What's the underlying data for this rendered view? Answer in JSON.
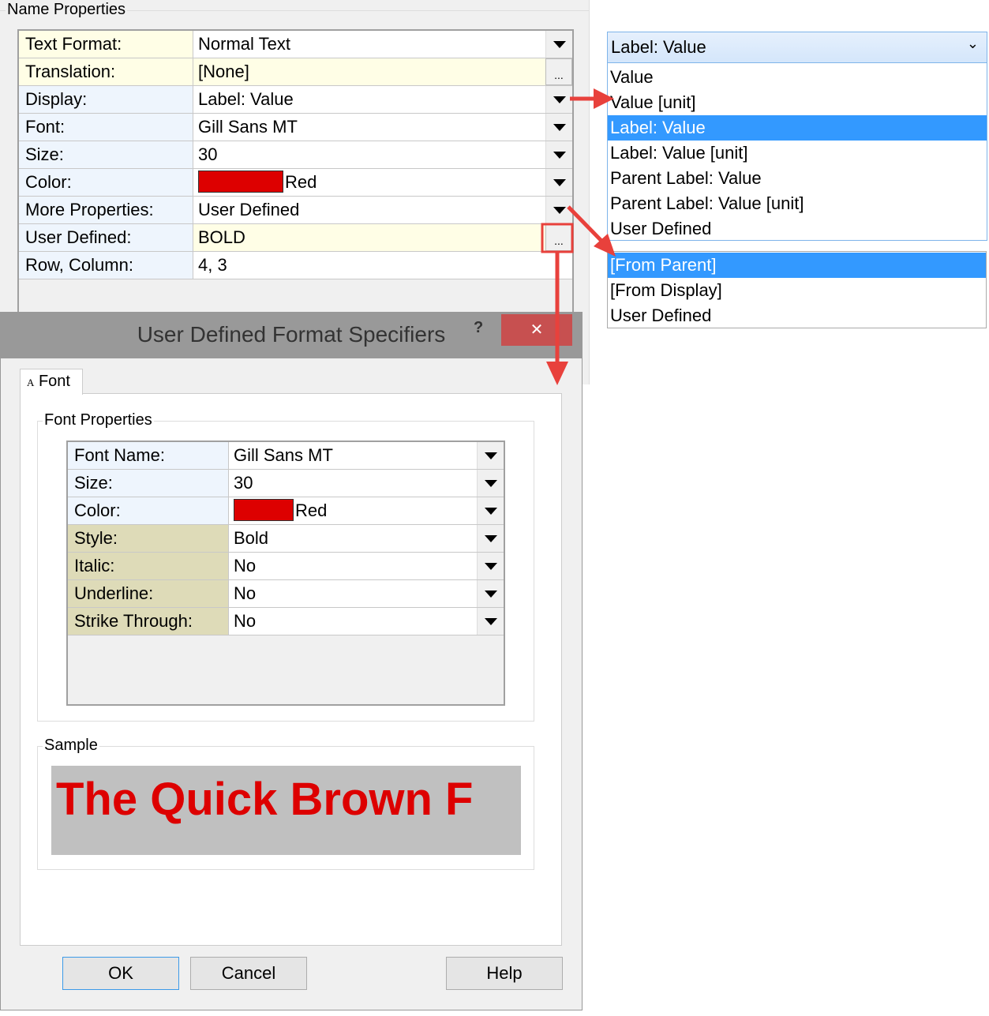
{
  "name_properties": {
    "title": "Name Properties",
    "rows": [
      {
        "label": "Text Format:",
        "value": "Normal Text",
        "control": "dropdown"
      },
      {
        "label": "Translation:",
        "value": "[None]",
        "control": "ellipsis"
      },
      {
        "label": "Display:",
        "value": "Label: Value",
        "control": "dropdown"
      },
      {
        "label": "Font:",
        "value": "Gill Sans MT",
        "control": "dropdown"
      },
      {
        "label": "Size:",
        "value": "30",
        "control": "dropdown"
      },
      {
        "label": "Color:",
        "value": "Red",
        "control": "dropdown",
        "swatch": "#dd0000"
      },
      {
        "label": "More Properties:",
        "value": "User Defined",
        "control": "dropdown"
      },
      {
        "label": "User Defined:",
        "value": "BOLD",
        "control": "ellipsis"
      },
      {
        "label": "Row, Column:",
        "value": "4, 3",
        "control": "none"
      }
    ],
    "ellipsis": "..."
  },
  "display_dropdown": {
    "selected": "Label: Value",
    "options": [
      "Value",
      "Value [unit]",
      "Label: Value",
      "Label: Value [unit]",
      "Parent Label: Value",
      "Parent Label: Value [unit]",
      "User Defined"
    ]
  },
  "more_properties_dropdown": {
    "options": [
      "[From Parent]",
      "[From Display]",
      "User Defined"
    ],
    "selected": "[From Parent]"
  },
  "dialog": {
    "title": "User Defined Format Specifiers",
    "help_glyph": "?",
    "close_glyph": "✕",
    "tab": {
      "icon": "A",
      "label": "Font"
    },
    "font_group": "Font Properties",
    "rows": [
      {
        "label": "Font Name:",
        "value": "Gill Sans MT"
      },
      {
        "label": "Size:",
        "value": "30"
      },
      {
        "label": "Color:",
        "value": "Red",
        "swatch": "#dd0000"
      },
      {
        "label": "Style:",
        "value": "Bold"
      },
      {
        "label": "Italic:",
        "value": "No"
      },
      {
        "label": "Underline:",
        "value": "No"
      },
      {
        "label": "Strike Through:",
        "value": "No"
      }
    ],
    "sample_group": "Sample",
    "sample_text": "The Quick Brown F",
    "buttons": {
      "ok": "OK",
      "cancel": "Cancel",
      "help": "Help"
    }
  },
  "colors": {
    "accent_red": "#e8413c",
    "selection": "#3399ff",
    "sample_text": "#dd0000"
  }
}
